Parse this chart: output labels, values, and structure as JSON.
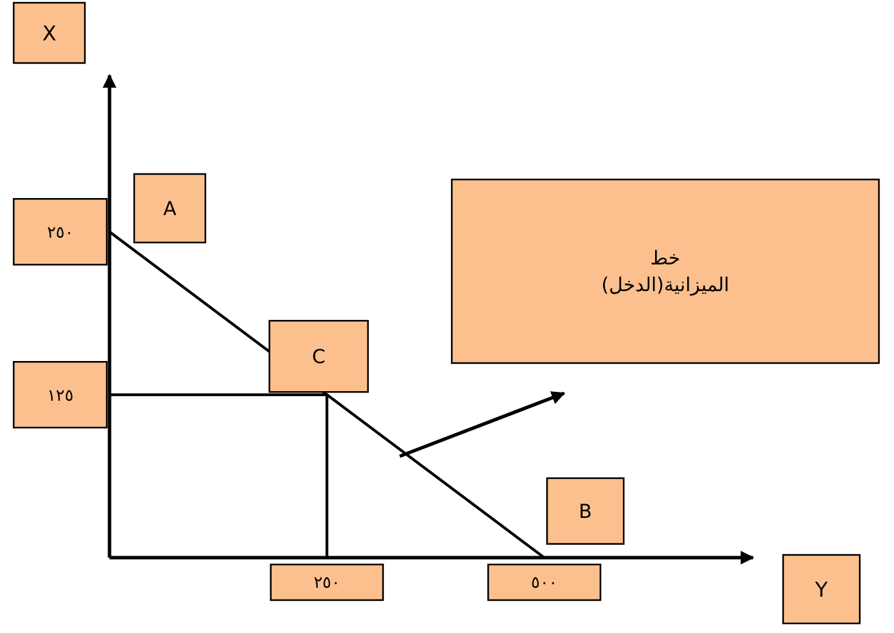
{
  "chart_data": {
    "type": "line",
    "xlabel": "Y",
    "ylabel": "X",
    "series": [
      {
        "x": [
          0,
          250,
          500
        ],
        "values": [
          250,
          125,
          0
        ],
        "color": "#000000"
      },
      {
        "x": [
          0,
          250
        ],
        "values": [
          125,
          125
        ],
        "color": "#000000"
      },
      {
        "x": [
          250,
          250
        ],
        "values": [
          0,
          125
        ],
        "color": "#000000"
      }
    ],
    "xlim": [
      0,
      740
    ],
    "ylim": [
      0,
      370
    ],
    "xticks": [
      {
        "value": 250,
        "label": "٢٥٠"
      },
      {
        "value": 500,
        "label": "٥٠٠"
      }
    ],
    "yticks": [
      {
        "value": 125,
        "label": "١٢٥"
      },
      {
        "value": 250,
        "label": "٢٥٠"
      }
    ],
    "annotations": [
      "A",
      {
        "text": "C",
        "x": 250,
        "y": 125
      },
      {
        "text": "B",
        "x": 500,
        "y": 0
      },
      "خط\nالميزانية(الدخل)"
    ],
    "grid": false,
    "marker": "none",
    "line_style": "solid"
  }
}
